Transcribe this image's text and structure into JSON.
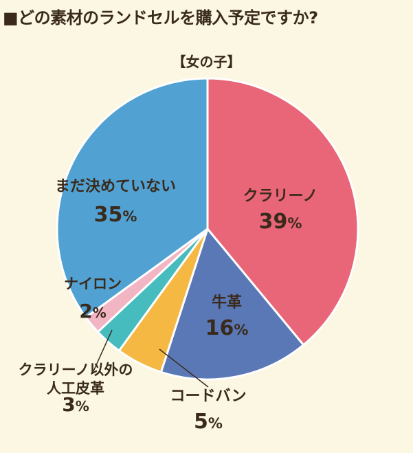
{
  "title": "■どの素材のランドセルを購入予定ですか?",
  "subtitle": "【女の子】",
  "chart_data": {
    "type": "pie",
    "title": "■どの素材のランドセルを購入予定ですか?",
    "subtitle": "【女の子】",
    "unit": "%",
    "slices": [
      {
        "label": "クラリーノ",
        "value": 39,
        "color": "#e86677"
      },
      {
        "label": "牛革",
        "value": 16,
        "color": "#5a78b5"
      },
      {
        "label": "コードバン",
        "value": 5,
        "color": "#f5b843"
      },
      {
        "label": "クラリーノ以外の\n人工皮革",
        "value": 3,
        "color": "#46bcbf"
      },
      {
        "label": "ナイロン",
        "value": 2,
        "color": "#f2b5c3"
      },
      {
        "label": "まだ決めていない",
        "value": 35,
        "color": "#51a1d2"
      }
    ],
    "legend": "none",
    "label_placement": "on-slice and outside with leader lines"
  }
}
